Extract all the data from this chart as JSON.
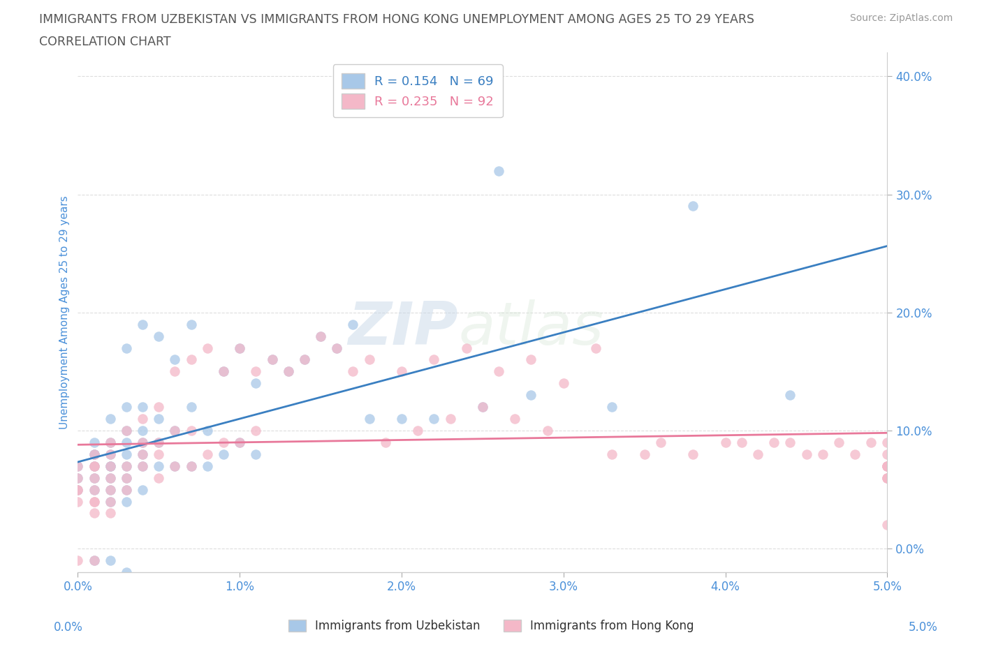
{
  "title_line1": "IMMIGRANTS FROM UZBEKISTAN VS IMMIGRANTS FROM HONG KONG UNEMPLOYMENT AMONG AGES 25 TO 29 YEARS",
  "title_line2": "CORRELATION CHART",
  "source_text": "Source: ZipAtlas.com",
  "ylabel": "Unemployment Among Ages 25 to 29 years",
  "xlim": [
    0.0,
    0.05
  ],
  "ylim": [
    -0.02,
    0.42
  ],
  "xtick_labels": [
    "0.0%",
    "1.0%",
    "2.0%",
    "3.0%",
    "4.0%",
    "5.0%"
  ],
  "xtick_vals": [
    0.0,
    0.01,
    0.02,
    0.03,
    0.04,
    0.05
  ],
  "ytick_vals": [
    0.0,
    0.1,
    0.2,
    0.3,
    0.4
  ],
  "ytick_labels": [
    "0.0%",
    "10.0%",
    "20.0%",
    "30.0%",
    "40.0%"
  ],
  "legend_label1": "R = 0.154   N = 69",
  "legend_label2": "R = 0.235   N = 92",
  "legend_label_uzb": "Immigrants from Uzbekistan",
  "legend_label_hk": "Immigrants from Hong Kong",
  "color_blue": "#a8c8e8",
  "color_pink": "#f4b8c8",
  "color_line_blue": "#3a7fc1",
  "color_line_pink": "#e8789a",
  "color_title": "#555555",
  "color_tick": "#4a90d9",
  "color_grid": "#dddddd",
  "watermark_zip": "ZIP",
  "watermark_atlas": "atlas",
  "uzbekistan_x": [
    0.0,
    0.0,
    0.0,
    0.001,
    0.001,
    0.001,
    0.001,
    0.001,
    0.001,
    0.001,
    0.002,
    0.002,
    0.002,
    0.002,
    0.002,
    0.002,
    0.002,
    0.002,
    0.002,
    0.003,
    0.003,
    0.003,
    0.003,
    0.003,
    0.003,
    0.003,
    0.003,
    0.003,
    0.003,
    0.004,
    0.004,
    0.004,
    0.004,
    0.004,
    0.004,
    0.004,
    0.005,
    0.005,
    0.005,
    0.005,
    0.006,
    0.006,
    0.006,
    0.007,
    0.007,
    0.007,
    0.008,
    0.008,
    0.009,
    0.009,
    0.01,
    0.01,
    0.011,
    0.011,
    0.012,
    0.013,
    0.014,
    0.015,
    0.016,
    0.017,
    0.018,
    0.02,
    0.022,
    0.025,
    0.026,
    0.028,
    0.033,
    0.038,
    0.044
  ],
  "uzbekistan_y": [
    0.07,
    0.06,
    0.05,
    0.09,
    0.08,
    0.08,
    0.07,
    0.06,
    0.05,
    -0.01,
    0.11,
    0.09,
    0.08,
    0.07,
    0.07,
    0.06,
    0.05,
    0.04,
    -0.01,
    0.17,
    0.12,
    0.1,
    0.09,
    0.08,
    0.07,
    0.06,
    0.05,
    0.04,
    -0.02,
    0.19,
    0.12,
    0.1,
    0.09,
    0.08,
    0.07,
    0.05,
    0.18,
    0.11,
    0.09,
    0.07,
    0.16,
    0.1,
    0.07,
    0.19,
    0.12,
    0.07,
    0.1,
    0.07,
    0.15,
    0.08,
    0.17,
    0.09,
    0.14,
    0.08,
    0.16,
    0.15,
    0.16,
    0.18,
    0.17,
    0.19,
    0.11,
    0.11,
    0.11,
    0.12,
    0.32,
    0.13,
    0.12,
    0.29,
    0.13
  ],
  "hongkong_x": [
    0.0,
    0.0,
    0.0,
    0.0,
    0.0,
    0.0,
    0.001,
    0.001,
    0.001,
    0.001,
    0.001,
    0.001,
    0.001,
    0.001,
    0.001,
    0.002,
    0.002,
    0.002,
    0.002,
    0.002,
    0.002,
    0.002,
    0.003,
    0.003,
    0.003,
    0.003,
    0.004,
    0.004,
    0.004,
    0.004,
    0.005,
    0.005,
    0.005,
    0.005,
    0.006,
    0.006,
    0.006,
    0.007,
    0.007,
    0.007,
    0.008,
    0.008,
    0.009,
    0.009,
    0.01,
    0.01,
    0.011,
    0.011,
    0.012,
    0.013,
    0.014,
    0.015,
    0.016,
    0.017,
    0.018,
    0.019,
    0.02,
    0.021,
    0.022,
    0.023,
    0.024,
    0.025,
    0.026,
    0.027,
    0.028,
    0.029,
    0.03,
    0.032,
    0.033,
    0.035,
    0.036,
    0.038,
    0.04,
    0.041,
    0.042,
    0.043,
    0.044,
    0.045,
    0.046,
    0.047,
    0.048,
    0.049,
    0.05,
    0.05,
    0.05,
    0.05,
    0.05,
    0.05,
    0.05,
    0.05,
    0.05,
    0.05
  ],
  "hongkong_y": [
    0.07,
    0.06,
    0.05,
    0.05,
    0.04,
    -0.01,
    0.08,
    0.07,
    0.07,
    0.06,
    0.05,
    0.04,
    0.04,
    0.03,
    -0.01,
    0.09,
    0.08,
    0.07,
    0.06,
    0.05,
    0.04,
    0.03,
    0.1,
    0.07,
    0.06,
    0.05,
    0.11,
    0.09,
    0.08,
    0.07,
    0.12,
    0.09,
    0.08,
    0.06,
    0.15,
    0.1,
    0.07,
    0.16,
    0.1,
    0.07,
    0.17,
    0.08,
    0.15,
    0.09,
    0.17,
    0.09,
    0.15,
    0.1,
    0.16,
    0.15,
    0.16,
    0.18,
    0.17,
    0.15,
    0.16,
    0.09,
    0.15,
    0.1,
    0.16,
    0.11,
    0.17,
    0.12,
    0.15,
    0.11,
    0.16,
    0.1,
    0.14,
    0.17,
    0.08,
    0.08,
    0.09,
    0.08,
    0.09,
    0.09,
    0.08,
    0.09,
    0.09,
    0.08,
    0.08,
    0.09,
    0.08,
    0.09,
    0.08,
    0.07,
    0.07,
    0.07,
    0.06,
    0.06,
    0.07,
    0.09,
    0.06,
    0.02
  ]
}
